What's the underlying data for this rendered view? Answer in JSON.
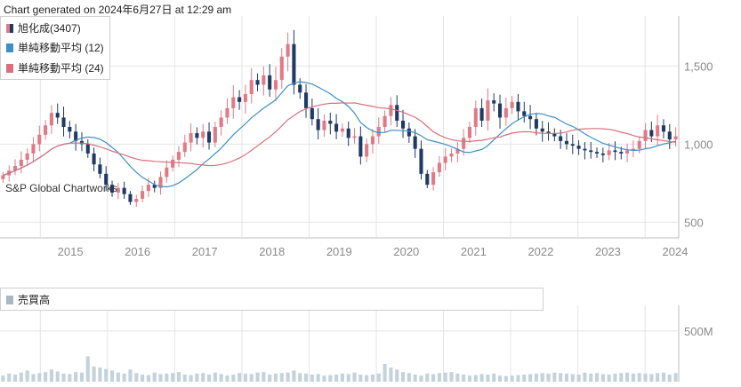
{
  "header": "Chart generated on 2024年6月27日 at 12:29 am",
  "watermark": "S&P Global Chartworks",
  "legend": [
    {
      "label": "旭化成(3407)",
      "color": "#e07a86",
      "icon": "candle-icon"
    },
    {
      "label": "単純移動平均 (12)",
      "color": "#3c8fc8",
      "icon": "line-icon"
    },
    {
      "label": "単純移動平均 (24)",
      "color": "#d9707c",
      "icon": "line-icon"
    }
  ],
  "volume_legend": {
    "label": "売買高",
    "color": "#a9b7c6",
    "icon": "bar-icon"
  },
  "colors": {
    "up": "#e07a86",
    "down": "#1f3a64",
    "grid": "#e4e4e4",
    "volume": "#c4d2de"
  },
  "chart_data": {
    "type": "candlestick",
    "price_axis": {
      "ticks": [
        500,
        1000,
        1500
      ],
      "tick_labels": [
        "500",
        "1,000",
        "1,500"
      ],
      "ylim": [
        400,
        1820
      ]
    },
    "volume_axis": {
      "ticks": [
        500
      ],
      "tick_labels": [
        "500M"
      ],
      "unit": "M",
      "ylim": [
        0,
        700
      ]
    },
    "x_ticks": [
      "2015",
      "2016",
      "2017",
      "2018",
      "2019",
      "2020",
      "2021",
      "2022",
      "2023",
      "2024"
    ],
    "x_start_year": 2014.4,
    "x_end_year": 2024.5,
    "moving_average_periods": [
      12,
      24
    ],
    "monthly_close": [
      800,
      830,
      860,
      900,
      940,
      1000,
      1060,
      1120,
      1200,
      1170,
      1110,
      1080,
      1020,
      1000,
      940,
      870,
      810,
      740,
      690,
      720,
      680,
      630,
      650,
      700,
      740,
      720,
      790,
      850,
      900,
      950,
      1010,
      1070,
      1040,
      1080,
      1010,
      1110,
      1170,
      1230,
      1300,
      1270,
      1320,
      1410,
      1380,
      1440,
      1350,
      1410,
      1560,
      1640,
      1380,
      1330,
      1230,
      1160,
      1090,
      1150,
      1130,
      1080,
      1100,
      1040,
      1050,
      920,
      1000,
      1050,
      1110,
      1180,
      1250,
      1150,
      1100,
      1050,
      970,
      810,
      740,
      820,
      880,
      920,
      940,
      970,
      1040,
      1110,
      1230,
      1150,
      1280,
      1260,
      1170,
      1230,
      1270,
      1210,
      1180,
      1160,
      1100,
      1080,
      1070,
      1050,
      1020,
      1000,
      990,
      970,
      960,
      950,
      940,
      930,
      960,
      950,
      940,
      960,
      970,
      1020,
      1090,
      1050,
      1120,
      1080,
      1030,
      1050
    ],
    "monthly_volume": [
      60,
      80,
      70,
      90,
      110,
      75,
      85,
      95,
      120,
      100,
      80,
      75,
      95,
      90,
      250,
      150,
      140,
      125,
      110,
      90,
      80,
      120,
      85,
      70,
      65,
      90,
      75,
      80,
      85,
      95,
      70,
      65,
      80,
      85,
      70,
      90,
      75,
      60,
      70,
      85,
      80,
      75,
      90,
      95,
      70,
      80,
      85,
      90,
      110,
      85,
      80,
      70,
      75,
      60,
      65,
      70,
      80,
      75,
      90,
      70,
      65,
      70,
      80,
      175,
      140,
      120,
      95,
      85,
      70,
      60,
      80,
      75,
      85,
      90,
      95,
      80,
      70,
      60,
      65,
      75,
      70,
      80,
      60,
      55,
      60,
      65,
      70,
      75,
      80,
      85,
      80,
      90,
      85,
      80,
      75,
      70,
      90,
      80,
      85,
      75,
      70,
      80,
      85,
      90,
      80,
      85,
      80,
      75,
      85,
      90,
      70,
      85
    ]
  }
}
